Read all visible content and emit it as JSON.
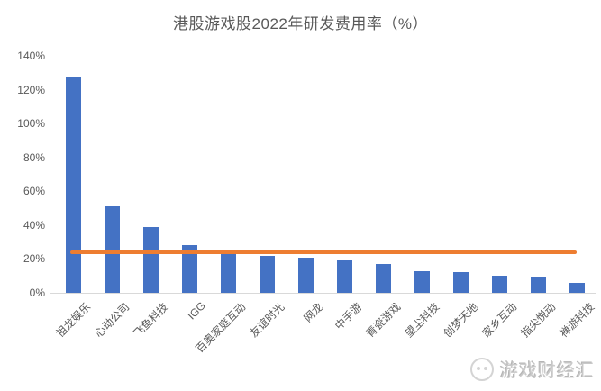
{
  "chart_data": {
    "type": "bar",
    "title": "港股游戏股2022年研发费用率（%）",
    "categories": [
      "祖龙娱乐",
      "心动公司",
      "飞鱼科技",
      "IGG",
      "百奥家庭互动",
      "友谊时光",
      "网龙",
      "中手游",
      "青瓷游戏",
      "望尘科技",
      "创梦天地",
      "家乡互动",
      "指尖悦动",
      "禅游科技"
    ],
    "values": [
      127,
      51,
      39,
      28,
      23,
      22,
      21,
      19,
      17,
      13,
      12,
      10,
      9,
      6
    ],
    "xlabel": "",
    "ylabel": "",
    "ylim": [
      0,
      140
    ],
    "ytick_step": 20,
    "ytick_labels": [
      "0%",
      "20%",
      "40%",
      "60%",
      "80%",
      "100%",
      "120%",
      "140%"
    ],
    "grid": false,
    "legend": "none",
    "bar_color": "#4472C4",
    "reference_line": {
      "value": 24,
      "color": "#ED7D31"
    }
  },
  "watermark": {
    "icon": "game-logo-icon",
    "text": "游戏财经汇"
  }
}
